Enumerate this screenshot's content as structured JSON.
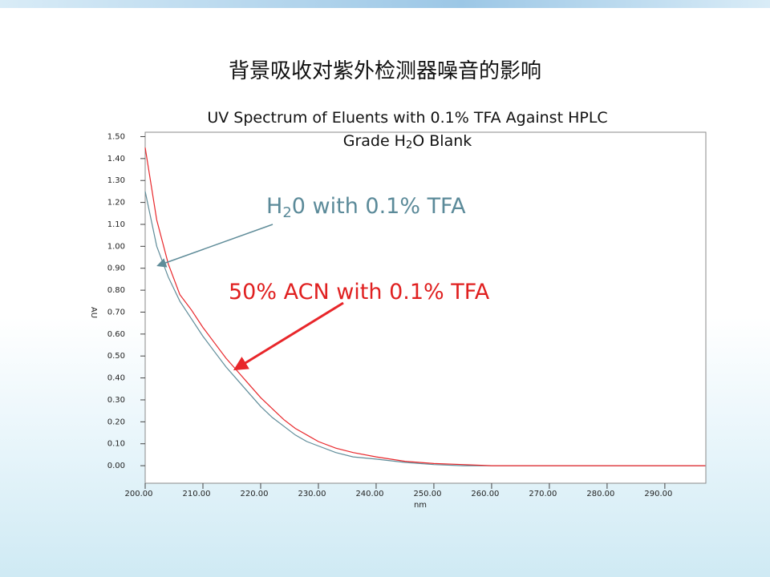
{
  "slide_title": "背景吸收对紫外检测器噪音的影响",
  "chart_data": {
    "type": "line",
    "title": [
      "UV Spectrum of Eluents with 0.1% TFA Against HPLC",
      "Grade H",
      "2",
      "O Blank"
    ],
    "xlabel": "nm",
    "ylabel": "AU",
    "x": [
      200,
      202,
      204,
      206,
      208,
      210,
      212,
      214,
      216,
      218,
      220,
      222,
      224,
      226,
      228,
      230,
      233,
      236,
      240,
      245,
      250,
      255,
      260,
      270,
      280,
      297
    ],
    "series": [
      {
        "color": "#5f8c99",
        "values": [
          1.25,
          1.0,
          0.86,
          0.75,
          0.67,
          0.59,
          0.52,
          0.45,
          0.39,
          0.33,
          0.27,
          0.22,
          0.18,
          0.14,
          0.11,
          0.09,
          0.06,
          0.04,
          0.03,
          0.015,
          0.005,
          0,
          0,
          0,
          0,
          0
        ]
      },
      {
        "color": "#e8262a",
        "values": [
          1.45,
          1.12,
          0.92,
          0.78,
          0.71,
          0.63,
          0.56,
          0.49,
          0.43,
          0.37,
          0.31,
          0.26,
          0.21,
          0.17,
          0.14,
          0.11,
          0.08,
          0.06,
          0.04,
          0.02,
          0.01,
          0.005,
          0,
          0,
          0,
          0
        ]
      }
    ],
    "annotations": [
      {
        "text": [
          "H",
          "2",
          "0 with 0.1% TFA"
        ],
        "color": "#5b8a99"
      },
      {
        "text": [
          "50% ACN with 0.1% TFA"
        ],
        "color": "#e02020"
      }
    ],
    "xlim": [
      200,
      297.1
    ],
    "ylim": [
      -0.08,
      1.52
    ],
    "xticks": [
      {
        "value": 200,
        "label": "200.00"
      },
      {
        "value": 210,
        "label": "210.00"
      },
      {
        "value": 220,
        "label": "220.00"
      },
      {
        "value": 230,
        "label": "230.00"
      },
      {
        "value": 240,
        "label": "240.00"
      },
      {
        "value": 250,
        "label": "250.00"
      },
      {
        "value": 260,
        "label": "260.00"
      },
      {
        "value": 270,
        "label": "270.00"
      },
      {
        "value": 280,
        "label": "280.00"
      },
      {
        "value": 290,
        "label": "290.00"
      }
    ],
    "yticks": [
      {
        "value": 0,
        "label": "0.00"
      },
      {
        "value": 0.1,
        "label": "0.10"
      },
      {
        "value": 0.2,
        "label": "0.20"
      },
      {
        "value": 0.3,
        "label": "0.30"
      },
      {
        "value": 0.4,
        "label": "0.40"
      },
      {
        "value": 0.5,
        "label": "0.50"
      },
      {
        "value": 0.6,
        "label": "0.60"
      },
      {
        "value": 0.7,
        "label": "0.70"
      },
      {
        "value": 0.8,
        "label": "0.80"
      },
      {
        "value": 0.9,
        "label": "0.90"
      },
      {
        "value": 1.0,
        "label": "1.00"
      },
      {
        "value": 1.1,
        "label": "1.10"
      },
      {
        "value": 1.2,
        "label": "1.20"
      },
      {
        "value": 1.3,
        "label": "1.30"
      },
      {
        "value": 1.4,
        "label": "1.40"
      },
      {
        "value": 1.5,
        "label": "1.50"
      }
    ]
  }
}
